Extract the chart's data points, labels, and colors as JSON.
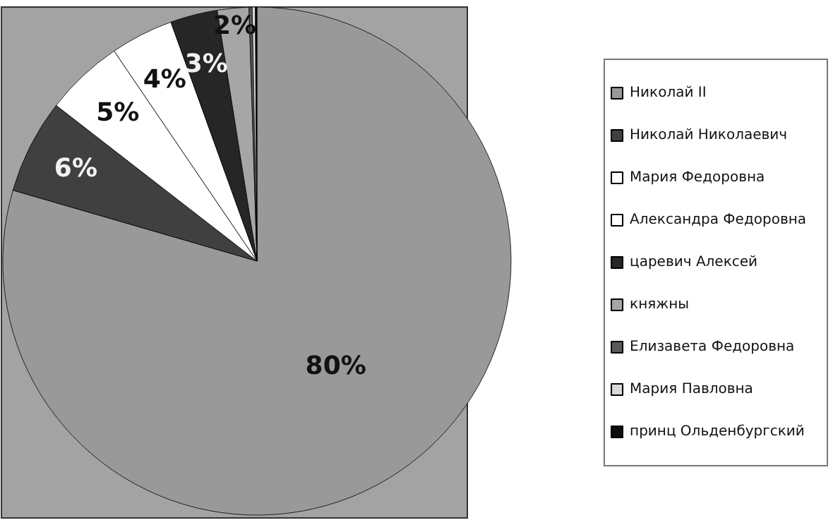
{
  "chart_data": {
    "type": "pie",
    "categories": [
      "Николай II",
      "Николай Николаевич",
      "Мария Федоровна",
      "Александра Федоровна",
      "царевич Алексей",
      "княжны",
      "Елизавета Федоровна",
      "Мария Павловна",
      "принц Ольденбургский"
    ],
    "values": [
      79.5,
      6,
      5,
      4,
      3,
      2,
      0.2,
      0.2,
      0.1
    ],
    "value_labels": [
      "80%",
      "6%",
      "5%",
      "4%",
      "3%",
      "2%",
      null,
      null,
      null
    ],
    "colors": [
      "#999999",
      "#404040",
      "#ffffff",
      "#ffffff",
      "#262626",
      "#a6a6a6",
      "#595959",
      "#d9d9d9",
      "#0d0d0d"
    ],
    "legend": "right"
  }
}
